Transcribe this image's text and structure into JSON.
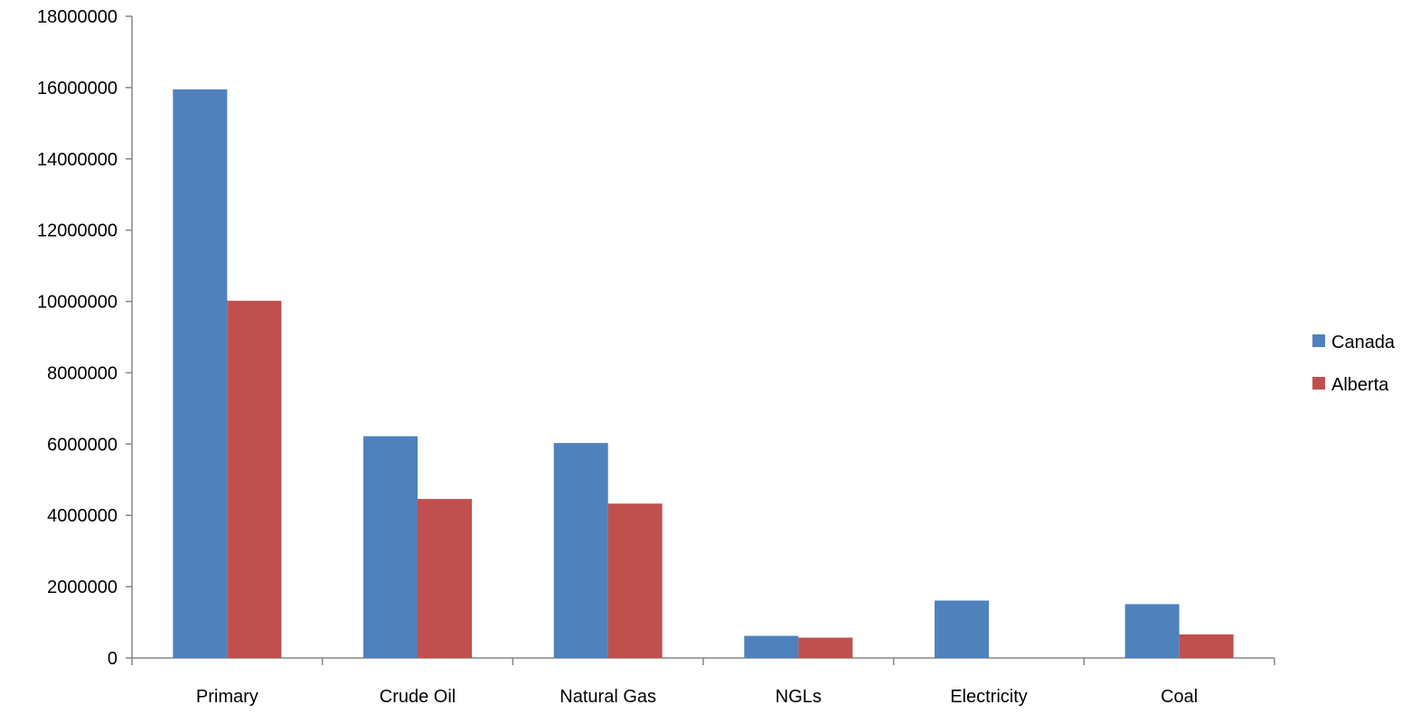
{
  "chart_data": {
    "type": "bar",
    "categories": [
      "Primary",
      "Crude Oil",
      "Natural Gas",
      "NGLs",
      "Electricity",
      "Coal"
    ],
    "series": [
      {
        "name": "Canada",
        "color": "#4F81BD",
        "values": [
          15950000,
          6220000,
          6030000,
          620000,
          1610000,
          1510000
        ]
      },
      {
        "name": "Alberta",
        "color": "#C0504D",
        "values": [
          10020000,
          4460000,
          4330000,
          570000,
          0,
          660000
        ]
      }
    ],
    "ylim": [
      0,
      18000000
    ],
    "yticks": [
      0,
      2000000,
      4000000,
      6000000,
      8000000,
      10000000,
      12000000,
      14000000,
      16000000,
      18000000
    ],
    "ytick_labels": [
      "0",
      "2000000",
      "4000000",
      "6000000",
      "8000000",
      "10000000",
      "12000000",
      "14000000",
      "16000000",
      "18000000"
    ],
    "grid": false,
    "legend_position": "right",
    "axis_color": "#868686"
  }
}
